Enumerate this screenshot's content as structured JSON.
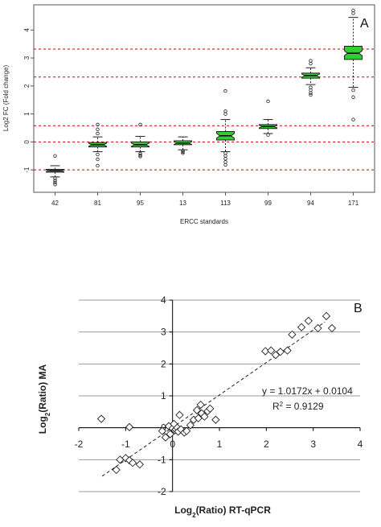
{
  "chart_data": [
    {
      "type": "box",
      "panel_label": "A",
      "xlabel": "ERCC standards",
      "ylabel": "Log2 FC (Fold change)",
      "ylim": [
        -1.8,
        4.9
      ],
      "yticks": [
        -1,
        0,
        1,
        2,
        3,
        4
      ],
      "categories": [
        "42",
        "81",
        "95",
        "13",
        "113",
        "99",
        "94",
        "171"
      ],
      "colors": {
        "box": "#33cc33",
        "refline": "#cc0000",
        "frame": "#555555"
      },
      "reference_lines": [
        -1,
        0,
        0.58,
        2.32,
        3.32
      ],
      "boxes": [
        {
          "q1": -1.08,
          "median": -1.03,
          "q3": -0.98,
          "whisker_low": -1.25,
          "whisker_high": -0.85,
          "outliers": [
            -0.5,
            -1.3,
            -1.38,
            -1.45,
            -1.52
          ]
        },
        {
          "q1": -0.18,
          "median": -0.1,
          "q3": -0.02,
          "whisker_low": -0.35,
          "whisker_high": 0.18,
          "outliers": [
            0.3,
            0.45,
            0.62,
            -0.45,
            -0.62,
            -0.85
          ]
        },
        {
          "q1": -0.18,
          "median": -0.1,
          "q3": 0.0,
          "whisker_low": -0.35,
          "whisker_high": 0.2,
          "outliers": [
            0.62,
            -0.42,
            -0.48,
            -0.52
          ]
        },
        {
          "q1": -0.1,
          "median": -0.04,
          "q3": 0.04,
          "whisker_low": -0.28,
          "whisker_high": 0.18,
          "outliers": [
            -0.32,
            -0.36,
            -0.4
          ]
        },
        {
          "q1": 0.07,
          "median": 0.22,
          "q3": 0.37,
          "whisker_low": -0.35,
          "whisker_high": 0.8,
          "outliers": [
            1.0,
            1.1,
            1.82,
            -0.4,
            -0.5,
            -0.6,
            -0.72,
            -0.82
          ]
        },
        {
          "q1": 0.48,
          "median": 0.55,
          "q3": 0.62,
          "whisker_low": 0.3,
          "whisker_high": 0.8,
          "outliers": [
            1.45,
            0.25
          ]
        },
        {
          "q1": 2.28,
          "median": 2.37,
          "q3": 2.46,
          "whisker_low": 2.05,
          "whisker_high": 2.65,
          "outliers": [
            2.8,
            2.9,
            1.95,
            1.85,
            1.75,
            1.68
          ]
        },
        {
          "q1": 2.95,
          "median": 3.17,
          "q3": 3.42,
          "whisker_low": 1.95,
          "whisker_high": 4.45,
          "outliers": [
            4.6,
            4.7,
            1.85,
            1.6,
            0.8
          ]
        }
      ]
    },
    {
      "type": "scatter",
      "panel_label": "B",
      "xlabel_base": "Log",
      "xlabel_sub": "2",
      "xlabel_rest": "(Ratio) RT-qPCR",
      "ylabel_base": "Log",
      "ylabel_sub": "2",
      "ylabel_rest": "(Ratio) MA",
      "xlim": [
        -2,
        4
      ],
      "ylim": [
        -2,
        4
      ],
      "xticks": [
        -2,
        -1,
        0,
        1,
        2,
        3,
        4
      ],
      "yticks": [
        -2,
        -1,
        0,
        1,
        2,
        3,
        4
      ],
      "grid": true,
      "equation": "y = 1.0172x + 0.0104",
      "r2_base": "R",
      "r2_sup": "2",
      "r2_rest": " = 0.9129",
      "trendline": {
        "slope": 1.0172,
        "intercept": 0.0104,
        "x_range": [
          -1.5,
          3.25
        ]
      },
      "points": [
        [
          -1.52,
          0.28
        ],
        [
          -0.92,
          0.02
        ],
        [
          -1.2,
          -1.32
        ],
        [
          -1.12,
          -1.0
        ],
        [
          -1.0,
          -0.95
        ],
        [
          -0.92,
          -1.02
        ],
        [
          -0.85,
          -1.1
        ],
        [
          -0.7,
          -1.15
        ],
        [
          -0.22,
          -0.1
        ],
        [
          -0.15,
          -0.3
        ],
        [
          -0.08,
          0.05
        ],
        [
          -0.05,
          -0.2
        ],
        [
          0.0,
          -0.02
        ],
        [
          0.03,
          0.12
        ],
        [
          0.05,
          -0.08
        ],
        [
          0.07,
          -0.05
        ],
        [
          0.1,
          0.0
        ],
        [
          0.12,
          -0.12
        ],
        [
          0.15,
          0.4
        ],
        [
          0.18,
          -0.05
        ],
        [
          0.25,
          -0.15
        ],
        [
          0.3,
          -0.1
        ],
        [
          0.38,
          0.08
        ],
        [
          0.45,
          0.25
        ],
        [
          0.52,
          0.55
        ],
        [
          0.55,
          0.3
        ],
        [
          0.6,
          0.72
        ],
        [
          0.62,
          0.45
        ],
        [
          0.68,
          0.35
        ],
        [
          0.75,
          0.52
        ],
        [
          0.8,
          0.6
        ],
        [
          0.92,
          0.25
        ],
        [
          1.98,
          2.4
        ],
        [
          2.1,
          2.42
        ],
        [
          2.2,
          2.28
        ],
        [
          2.3,
          2.38
        ],
        [
          2.45,
          2.42
        ],
        [
          2.55,
          2.92
        ],
        [
          2.75,
          3.15
        ],
        [
          2.9,
          3.35
        ],
        [
          3.1,
          3.12
        ],
        [
          3.28,
          3.5
        ],
        [
          3.4,
          3.12
        ]
      ]
    }
  ]
}
